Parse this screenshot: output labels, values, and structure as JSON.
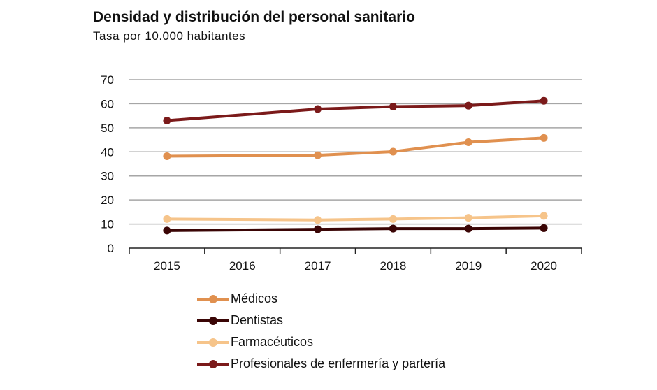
{
  "chart_data": {
    "type": "line",
    "title": "Densidad y distribución del personal sanitario",
    "subtitle": "Tasa por 10.000 habitantes",
    "xlabel": "",
    "ylabel": "",
    "x": [
      "2015",
      "2016",
      "2017",
      "2018",
      "2019",
      "2020"
    ],
    "ylim": [
      0,
      70
    ],
    "yticks": [
      "0",
      "10",
      "20",
      "30",
      "40",
      "50",
      "60",
      "70"
    ],
    "grid": true,
    "legend_position": "bottom",
    "series": [
      {
        "name": "Médicos",
        "color": "#E0904F",
        "values": [
          38.2,
          null,
          38.6,
          40.1,
          44.0,
          45.8
        ]
      },
      {
        "name": "Dentistas",
        "color": "#3A0505",
        "values": [
          7.3,
          null,
          7.8,
          8.1,
          8.1,
          8.3
        ]
      },
      {
        "name": "Farmacéuticos",
        "color": "#F6C48A",
        "values": [
          12.1,
          null,
          11.7,
          12.1,
          12.6,
          13.4
        ]
      },
      {
        "name": "Profesionales de enfermería y partería",
        "color": "#7B1A1A",
        "values": [
          53.0,
          null,
          57.8,
          58.8,
          59.2,
          61.2
        ]
      }
    ]
  }
}
